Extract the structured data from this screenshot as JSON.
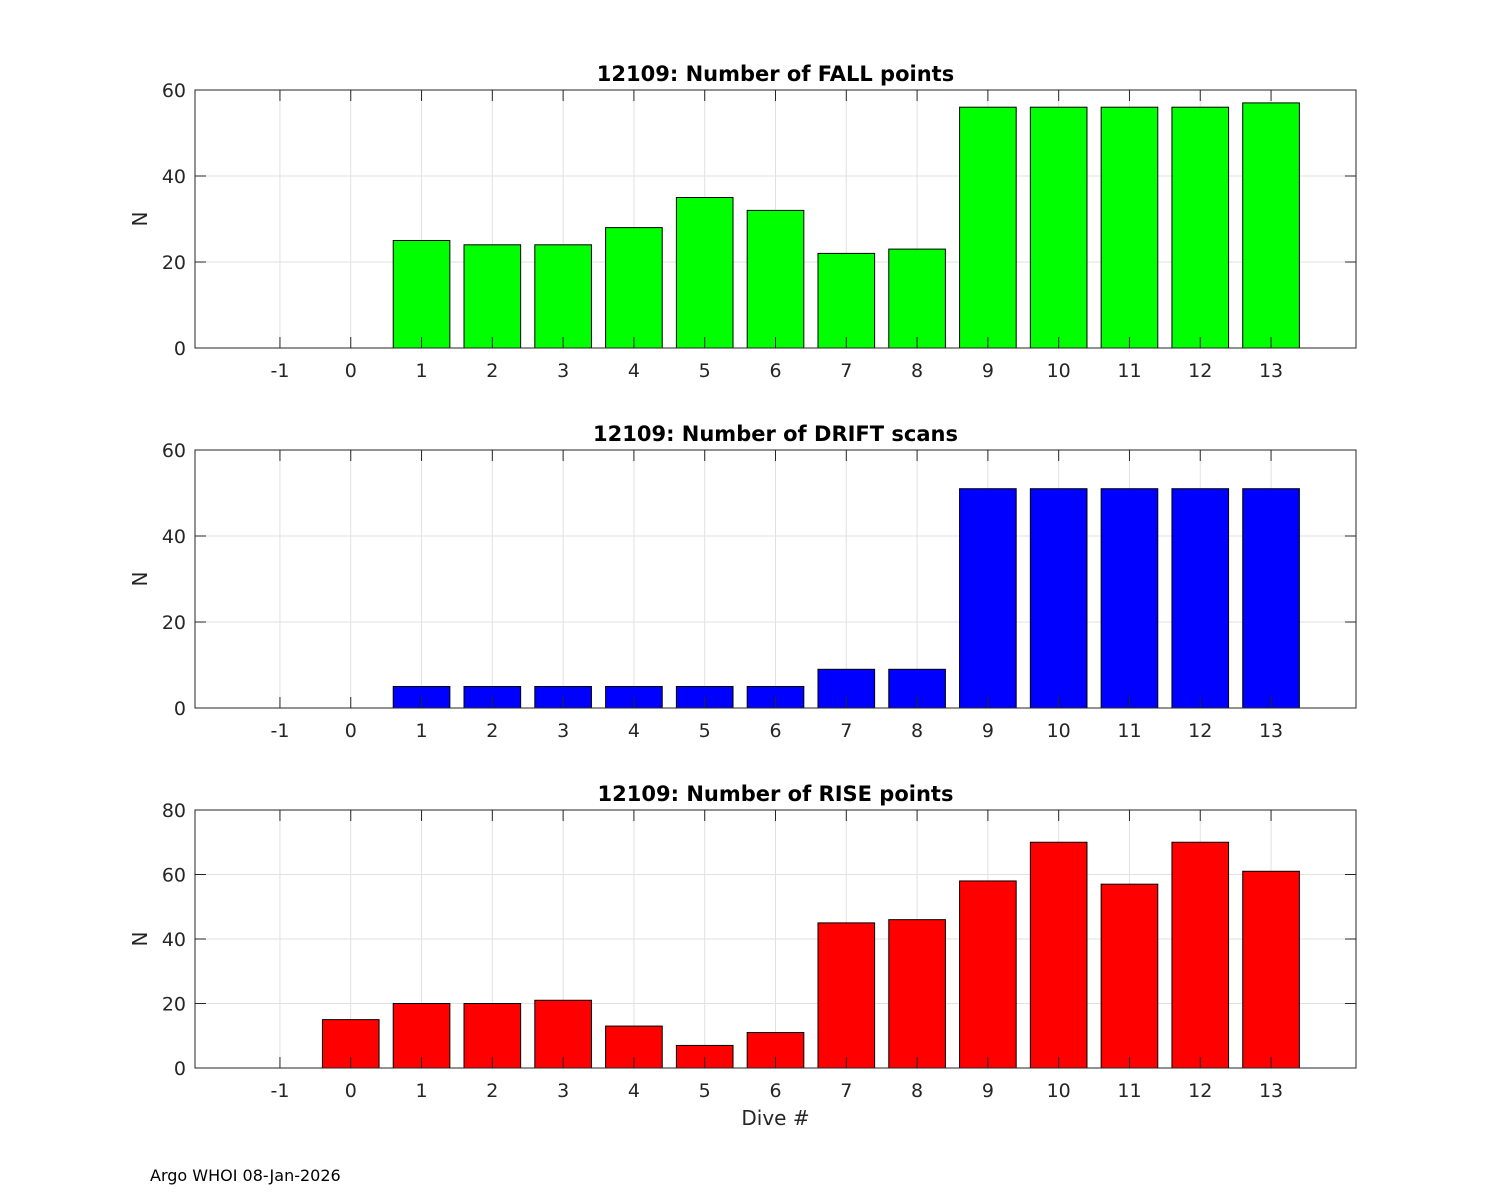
{
  "footer": {
    "text": "Argo WHOI 08-Jan-2026"
  },
  "chart_data": [
    {
      "type": "bar",
      "title": "12109: Number of FALL points",
      "xlabel": "",
      "ylabel": "N",
      "categories": [
        -1,
        0,
        1,
        2,
        3,
        4,
        5,
        6,
        7,
        8,
        9,
        10,
        11,
        12,
        13
      ],
      "values": [
        0,
        0,
        25,
        24,
        24,
        28,
        35,
        32,
        22,
        23,
        56,
        56,
        56,
        56,
        57
      ],
      "ylim": [
        0,
        60
      ],
      "yticks": [
        0,
        20,
        40,
        60
      ],
      "grid": true,
      "color": "#00ff00"
    },
    {
      "type": "bar",
      "title": "12109: Number of DRIFT scans",
      "xlabel": "",
      "ylabel": "N",
      "categories": [
        -1,
        0,
        1,
        2,
        3,
        4,
        5,
        6,
        7,
        8,
        9,
        10,
        11,
        12,
        13
      ],
      "values": [
        0,
        0,
        5,
        5,
        5,
        5,
        5,
        5,
        9,
        9,
        51,
        51,
        51,
        51,
        51
      ],
      "ylim": [
        0,
        60
      ],
      "yticks": [
        0,
        20,
        40,
        60
      ],
      "grid": true,
      "color": "#0000ff"
    },
    {
      "type": "bar",
      "title": "12109: Number of RISE points",
      "xlabel": "Dive #",
      "ylabel": "N",
      "categories": [
        -1,
        0,
        1,
        2,
        3,
        4,
        5,
        6,
        7,
        8,
        9,
        10,
        11,
        12,
        13
      ],
      "values": [
        0,
        15,
        20,
        20,
        21,
        13,
        7,
        11,
        45,
        46,
        58,
        70,
        57,
        70,
        61
      ],
      "ylim": [
        0,
        80
      ],
      "yticks": [
        0,
        20,
        40,
        60,
        80
      ],
      "grid": true,
      "color": "#ff0000"
    }
  ]
}
